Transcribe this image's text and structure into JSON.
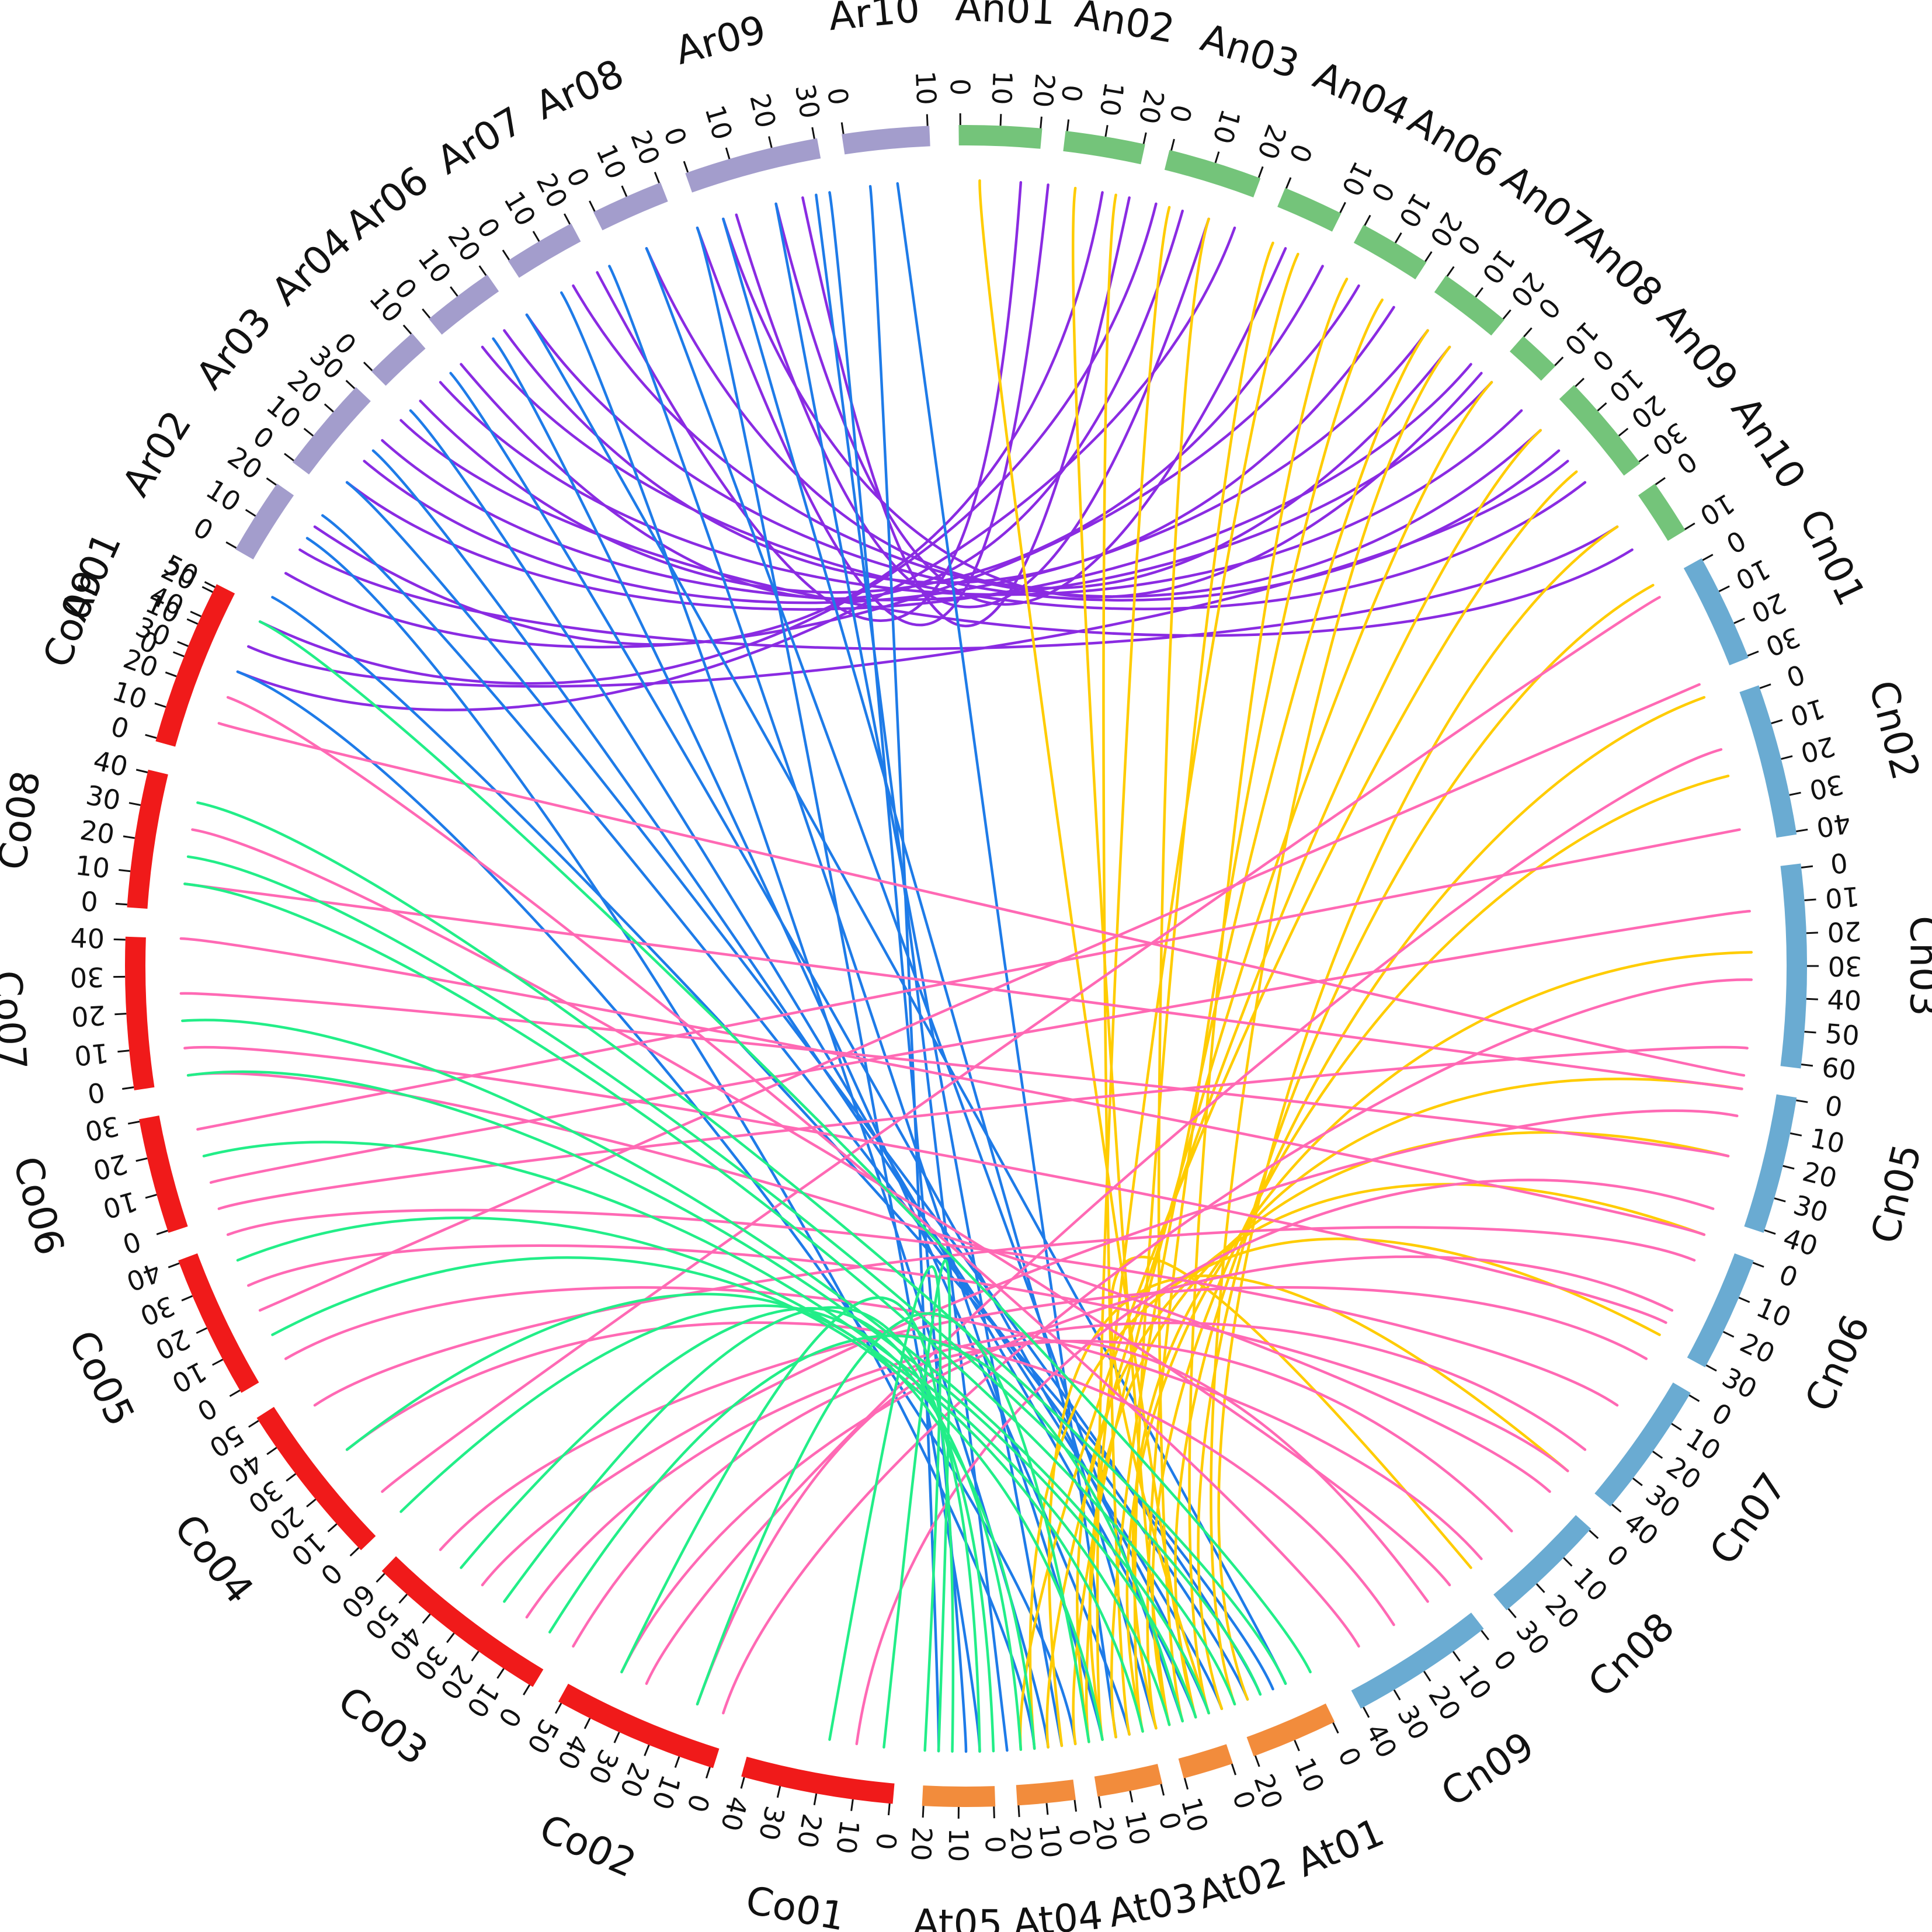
{
  "chart_data": {
    "type": "chord",
    "title": "",
    "groups": [
      {
        "name": "Ar",
        "color": "#a39dcc"
      },
      {
        "name": "An",
        "color": "#74c47a"
      },
      {
        "name": "Cn",
        "color": "#6aabd2"
      },
      {
        "name": "At",
        "color": "#f28c3c"
      },
      {
        "name": "Co",
        "color": "#f01a1a"
      }
    ],
    "chromosomes": [
      {
        "name": "Ar01",
        "group": "Ar",
        "start_deg": -68.5,
        "end_deg": -63.5,
        "ticks": [
          "0",
          "10",
          "20"
        ]
      },
      {
        "name": "Ar02",
        "group": "Ar",
        "start_deg": -60.3,
        "end_deg": -55.0,
        "ticks": [
          "0",
          "10",
          "20"
        ]
      },
      {
        "name": "Ar03",
        "group": "Ar",
        "start_deg": -53.2,
        "end_deg": -46.5,
        "ticks": [
          "0",
          "10",
          "20",
          "30"
        ]
      },
      {
        "name": "Ar04",
        "group": "Ar",
        "start_deg": -45.0,
        "end_deg": -41.2,
        "ticks": [
          "0",
          "10"
        ]
      },
      {
        "name": "Ar06",
        "group": "Ar",
        "start_deg": -39.7,
        "end_deg": -34.7,
        "ticks": [
          "0",
          "10",
          "20"
        ]
      },
      {
        "name": "Ar07",
        "group": "Ar",
        "start_deg": -33.0,
        "end_deg": -28.0,
        "ticks": [
          "0",
          "10",
          "20"
        ]
      },
      {
        "name": "Ar08",
        "group": "Ar",
        "start_deg": -26.3,
        "end_deg": -21.3,
        "ticks": [
          "0",
          "10",
          "20"
        ]
      },
      {
        "name": "Ar09",
        "group": "Ar",
        "start_deg": -19.5,
        "end_deg": -10.2,
        "ticks": [
          "0",
          "10",
          "20",
          "30"
        ]
      },
      {
        "name": "Ar10",
        "group": "Ar",
        "start_deg": -8.5,
        "end_deg": -2.5,
        "ticks": [
          "0",
          "10"
        ]
      },
      {
        "name": "An01",
        "group": "An",
        "start_deg": -0.5,
        "end_deg": 5.2,
        "ticks": [
          "0",
          "10",
          "20"
        ]
      },
      {
        "name": "An02",
        "group": "An",
        "start_deg": 6.8,
        "end_deg": 12.3,
        "ticks": [
          "0",
          "10",
          "20"
        ]
      },
      {
        "name": "An03",
        "group": "An",
        "start_deg": 14.0,
        "end_deg": 20.5,
        "ticks": [
          "0",
          "10",
          "20"
        ]
      },
      {
        "name": "An04",
        "group": "An",
        "start_deg": 22.3,
        "end_deg": 26.5,
        "ticks": [
          "0",
          "10"
        ]
      },
      {
        "name": "An06",
        "group": "An",
        "start_deg": 28.2,
        "end_deg": 33.2,
        "ticks": [
          "0",
          "10",
          "20"
        ]
      },
      {
        "name": "An07",
        "group": "An",
        "start_deg": 34.8,
        "end_deg": 39.8,
        "ticks": [
          "0",
          "10",
          "20"
        ]
      },
      {
        "name": "An08",
        "group": "An",
        "start_deg": 41.5,
        "end_deg": 44.5,
        "ticks": [
          "0",
          "10"
        ]
      },
      {
        "name": "An09",
        "group": "An",
        "start_deg": 46.3,
        "end_deg": 53.3,
        "ticks": [
          "0",
          "10",
          "20",
          "30"
        ]
      },
      {
        "name": "An10",
        "group": "An",
        "start_deg": 55.0,
        "end_deg": 58.8,
        "ticks": [
          "0",
          "10"
        ]
      },
      {
        "name": "Cn01",
        "group": "Cn",
        "start_deg": 61.0,
        "end_deg": 68.5,
        "ticks": [
          "0",
          "10",
          "20",
          "30"
        ]
      },
      {
        "name": "Cn02",
        "group": "Cn",
        "start_deg": 70.5,
        "end_deg": 81.0,
        "ticks": [
          "0",
          "10",
          "20",
          "30",
          "40"
        ]
      },
      {
        "name": "Cn03",
        "group": "Cn",
        "start_deg": 83.0,
        "end_deg": 97.0,
        "ticks": [
          "0",
          "10",
          "20",
          "30",
          "40",
          "50",
          "60"
        ]
      },
      {
        "name": "Cn05",
        "group": "Cn",
        "start_deg": 99.0,
        "end_deg": 108.5,
        "ticks": [
          "0",
          "10",
          "20",
          "30",
          "40"
        ]
      },
      {
        "name": "Cn06",
        "group": "Cn",
        "start_deg": 110.5,
        "end_deg": 118.5,
        "ticks": [
          "0",
          "10",
          "20",
          "30"
        ]
      },
      {
        "name": "Cn07",
        "group": "Cn",
        "start_deg": 120.5,
        "end_deg": 130.0,
        "ticks": [
          "0",
          "10",
          "20",
          "30",
          "40"
        ]
      },
      {
        "name": "Cn08",
        "group": "Cn",
        "start_deg": 132.0,
        "end_deg": 140.0,
        "ticks": [
          "0",
          "10",
          "20",
          "30"
        ]
      },
      {
        "name": "Cn09",
        "group": "Cn",
        "start_deg": 142.0,
        "end_deg": 152.0,
        "ticks": [
          "0",
          "10",
          "20",
          "30",
          "40"
        ]
      },
      {
        "name": "At01",
        "group": "At",
        "start_deg": 154.0,
        "end_deg": 160.0,
        "ticks": [
          "0",
          "10",
          "20"
        ]
      },
      {
        "name": "At02",
        "group": "At",
        "start_deg": 161.5,
        "end_deg": 165.0,
        "ticks": [
          "0",
          "10"
        ]
      },
      {
        "name": "At03",
        "group": "At",
        "start_deg": 166.5,
        "end_deg": 171.0,
        "ticks": [
          "0",
          "10",
          "20"
        ]
      },
      {
        "name": "At04",
        "group": "At",
        "start_deg": 172.5,
        "end_deg": 176.5,
        "ticks": [
          "0",
          "10",
          "20"
        ]
      },
      {
        "name": "At05",
        "group": "At",
        "start_deg": 178.0,
        "end_deg": 183.0,
        "ticks": [
          "0",
          "10",
          "20"
        ]
      },
      {
        "name": "Co01",
        "group": "Co",
        "start_deg": 185.0,
        "end_deg": 195.5,
        "ticks": [
          "0",
          "10",
          "20",
          "30",
          "40"
        ]
      },
      {
        "name": "Co02",
        "group": "Co",
        "start_deg": 197.5,
        "end_deg": 209.0,
        "ticks": [
          "0",
          "10",
          "20",
          "30",
          "40",
          "50"
        ]
      },
      {
        "name": "Co03",
        "group": "Co",
        "start_deg": 211.0,
        "end_deg": 224.0,
        "ticks": [
          "0",
          "10",
          "20",
          "30",
          "40",
          "50",
          "60"
        ]
      },
      {
        "name": "Co04",
        "group": "Co",
        "start_deg": 226.0,
        "end_deg": 237.5,
        "ticks": [
          "0",
          "10",
          "20",
          "30",
          "40",
          "50"
        ]
      },
      {
        "name": "Co05",
        "group": "Co",
        "start_deg": 239.5,
        "end_deg": 249.5,
        "ticks": [
          "0",
          "10",
          "20",
          "30",
          "40"
        ]
      },
      {
        "name": "Co06",
        "group": "Co",
        "start_deg": 251.5,
        "end_deg": 259.5,
        "ticks": [
          "0",
          "10",
          "20",
          "30"
        ]
      },
      {
        "name": "Co07",
        "group": "Co",
        "start_deg": 261.5,
        "end_deg": 272.0,
        "ticks": [
          "0",
          "10",
          "20",
          "30",
          "40"
        ]
      },
      {
        "name": "Co08",
        "group": "Co",
        "start_deg": 274.0,
        "end_deg": 283.5,
        "ticks": [
          "0",
          "10",
          "20",
          "30",
          "40"
        ]
      },
      {
        "name": "Co09",
        "group": "Co",
        "start_deg": 285.5,
        "end_deg": 297.0,
        "ticks": [
          "0",
          "10",
          "20",
          "30",
          "40",
          "50"
        ]
      }
    ],
    "link_sets": [
      {
        "name": "Ar-An",
        "color": "#8a2be2",
        "links": [
          [
            -68,
            20
          ],
          [
            -64,
            14
          ],
          [
            -60,
            30
          ],
          [
            -56,
            10
          ],
          [
            -52,
            40
          ],
          [
            -50,
            36
          ],
          [
            -46,
            58
          ],
          [
            -44,
            27
          ],
          [
            -42,
            45
          ],
          [
            -38,
            52
          ],
          [
            -36,
            33
          ],
          [
            -34,
            49
          ],
          [
            -30,
            47
          ],
          [
            -28,
            4
          ],
          [
            -24,
            38
          ],
          [
            -20,
            6
          ],
          [
            -17,
            18
          ],
          [
            -14,
            24
          ],
          [
            -12,
            12
          ],
          [
            -18,
            41
          ],
          [
            -66,
            50
          ],
          [
            -58,
            56
          ],
          [
            -48,
            42
          ],
          [
            -40,
            16
          ]
        ]
      },
      {
        "name": "Ar-At",
        "color": "#1e7be8",
        "links": [
          [
            -68,
            172
          ],
          [
            -62,
            157
          ],
          [
            -57,
            175
          ],
          [
            -55,
            159
          ],
          [
            -52,
            158
          ],
          [
            -49,
            161
          ],
          [
            -45,
            163
          ],
          [
            -41,
            162
          ],
          [
            -37,
            168
          ],
          [
            -34,
            156
          ],
          [
            -31,
            174
          ],
          [
            -27,
            170
          ],
          [
            -24,
            164
          ],
          [
            -20,
            179
          ],
          [
            -18,
            166
          ],
          [
            -14,
            173
          ],
          [
            -11,
            177
          ],
          [
            -10,
            180
          ],
          [
            -7,
            182
          ],
          [
            -5,
            169
          ]
        ]
      },
      {
        "name": "An-At",
        "color": "#ffcc00",
        "links": [
          [
            1,
            163
          ],
          [
            8,
            165
          ],
          [
            11,
            168
          ],
          [
            15,
            170
          ],
          [
            18,
            164
          ],
          [
            23,
            167
          ],
          [
            25,
            171
          ],
          [
            29,
            162
          ],
          [
            32,
            166
          ],
          [
            36,
            169
          ],
          [
            38,
            160
          ],
          [
            42,
            172
          ],
          [
            47,
            174
          ],
          [
            51,
            176
          ],
          [
            56,
            159
          ],
          [
            61,
            161
          ],
          [
            70,
            163
          ],
          [
            76,
            165
          ],
          [
            89,
            167
          ],
          [
            99,
            166
          ],
          [
            104,
            170
          ],
          [
            110,
            171
          ],
          [
            118,
            175
          ],
          [
            130,
            173
          ],
          [
            140,
            162
          ]
        ]
      },
      {
        "name": "Co-Cn",
        "color": "#ff69b4",
        "links": [
          [
            288,
            98
          ],
          [
            276,
            99
          ],
          [
            272,
            110
          ],
          [
            268,
            104
          ],
          [
            264,
            117
          ],
          [
            258,
            80
          ],
          [
            254,
            86
          ],
          [
            252,
            96
          ],
          [
            250,
            124
          ],
          [
            246,
            130
          ],
          [
            240,
            139
          ],
          [
            232,
            147
          ],
          [
            228,
            62
          ],
          [
            222,
            120
          ],
          [
            214,
            128
          ],
          [
            210,
            136
          ],
          [
            204,
            74
          ],
          [
            198,
            91
          ],
          [
            188,
            108
          ],
          [
            280,
            142
          ],
          [
            262,
            132
          ],
          [
            236,
            112
          ],
          [
            218,
            101
          ],
          [
            206,
            116
          ],
          [
            200,
            144
          ],
          [
            244,
            69
          ],
          [
            290,
            150
          ]
        ]
      },
      {
        "name": "Co-At",
        "color": "#22ee88",
        "links": [
          [
            296,
            154
          ],
          [
            282,
            156
          ],
          [
            278,
            158
          ],
          [
            276,
            160
          ],
          [
            266,
            162
          ],
          [
            262,
            163
          ],
          [
            256,
            165
          ],
          [
            248,
            167
          ],
          [
            242,
            170
          ],
          [
            232,
            175
          ],
          [
            226,
            176
          ],
          [
            220,
            178
          ],
          [
            216,
            179
          ],
          [
            206,
            181
          ],
          [
            190,
            183
          ],
          [
            186,
            182
          ],
          [
            212,
            164
          ],
          [
            200,
            171
          ]
        ]
      }
    ]
  }
}
